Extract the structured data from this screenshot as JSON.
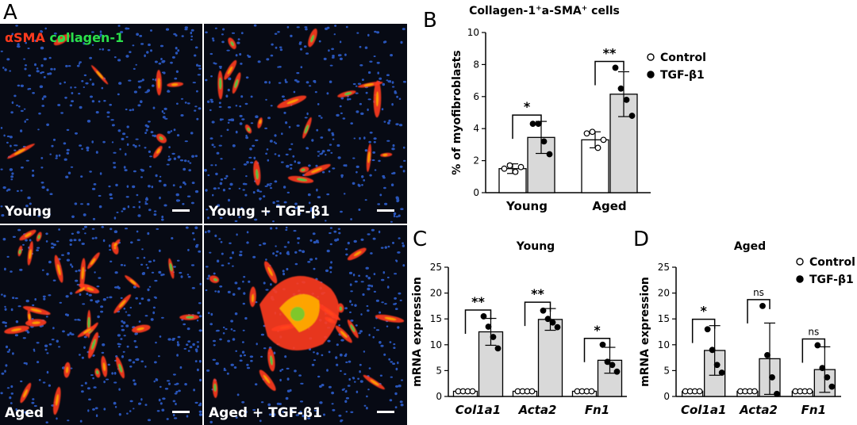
{
  "panel_a": {
    "letter": "A",
    "legend_red": "αSMA",
    "legend_green": "collagen-1",
    "images": [
      {
        "label": "Young"
      },
      {
        "label": "Young + TGF-β1"
      },
      {
        "label": "Aged"
      },
      {
        "label": "Aged + TGF-β1"
      }
    ],
    "colors": {
      "nuclei": "#2f63d8",
      "alpha_sma": "#ff3a1c",
      "collagen": "#2be04a",
      "overlap": "#ffb000",
      "background": "#070a14"
    }
  },
  "chart_data": [
    {
      "panel": "B",
      "type": "bar",
      "title": "Collagen-1⁺a-SMA⁺ cells",
      "title_parts": {
        "pre": "Collagen-1",
        "sup1": "+",
        "mid": "a-SMA",
        "sup2": "+",
        "post": " cells"
      },
      "ylabel": "% of myofibroblasts",
      "xlabel": "",
      "ylim": [
        0,
        10
      ],
      "yticks": [
        0,
        2,
        4,
        6,
        8,
        10
      ],
      "categories": [
        "Young",
        "Aged"
      ],
      "legend": {
        "placement": "right",
        "entries": [
          "Control",
          "TGF-β1"
        ]
      },
      "series": [
        {
          "name": "Control",
          "values": [
            1.5,
            3.3
          ],
          "errors": [
            0.3,
            0.5
          ],
          "fill": "#ffffff",
          "points": [
            [
              1.5,
              1.7,
              1.3,
              1.6
            ],
            [
              3.7,
              3.8,
              2.8,
              3.3
            ]
          ]
        },
        {
          "name": "TGF-β1",
          "values": [
            3.45,
            6.15
          ],
          "errors": [
            1.0,
            1.4
          ],
          "fill": "#d9d9d9",
          "points": [
            [
              4.3,
              4.3,
              3.2,
              2.4
            ],
            [
              7.8,
              6.5,
              5.8,
              4.8
            ]
          ]
        }
      ],
      "significance": [
        "*",
        "**"
      ]
    },
    {
      "panel": "C",
      "type": "bar",
      "title": "Young",
      "ylabel": "mRNA expression",
      "xlabel": "",
      "ylim": [
        0,
        25
      ],
      "yticks": [
        0,
        5,
        10,
        15,
        20,
        25
      ],
      "categories": [
        "Col1a1",
        "Acta2",
        "Fn1"
      ],
      "series": [
        {
          "name": "Control",
          "values": [
            1,
            1,
            1
          ],
          "errors": [
            0,
            0,
            0
          ],
          "fill": "#ffffff",
          "points": [
            [
              1,
              1,
              1,
              1
            ],
            [
              1,
              1,
              1,
              1
            ],
            [
              1,
              1,
              1,
              1
            ]
          ]
        },
        {
          "name": "TGF-β1",
          "values": [
            12.5,
            14.9,
            7.0
          ],
          "errors": [
            2.6,
            2.1,
            2.5
          ],
          "fill": "#d9d9d9",
          "points": [
            [
              15.5,
              13.5,
              11.5,
              9.3
            ],
            [
              16.6,
              15.0,
              14.3,
              13.4
            ],
            [
              10.0,
              6.7,
              6.1,
              4.8
            ]
          ]
        }
      ],
      "significance": [
        "**",
        "**",
        "*"
      ]
    },
    {
      "panel": "D",
      "type": "bar",
      "title": "Aged",
      "ylabel": "mRNA expression",
      "xlabel": "",
      "ylim": [
        0,
        25
      ],
      "yticks": [
        0,
        5,
        10,
        15,
        20,
        25
      ],
      "categories": [
        "Col1a1",
        "Acta2",
        "Fn1"
      ],
      "legend": {
        "placement": "top-right",
        "entries": [
          "Control",
          "TGF-β1"
        ]
      },
      "series": [
        {
          "name": "Control",
          "values": [
            1,
            1,
            1
          ],
          "errors": [
            0,
            0,
            0
          ],
          "fill": "#ffffff",
          "points": [
            [
              1,
              1,
              1,
              1
            ],
            [
              1,
              1,
              1,
              1
            ],
            [
              1,
              1,
              1,
              1
            ]
          ]
        },
        {
          "name": "TGF-β1",
          "values": [
            8.9,
            7.3,
            5.2
          ],
          "errors": [
            4.8,
            6.9,
            4.4
          ],
          "fill": "#d9d9d9",
          "points": [
            [
              13.0,
              9.0,
              6.1,
              4.6
            ],
            [
              17.5,
              8.0,
              3.7,
              0.5
            ],
            [
              9.9,
              5.5,
              3.7,
              1.9
            ]
          ]
        }
      ],
      "significance": [
        "*",
        "ns",
        "ns"
      ]
    }
  ]
}
